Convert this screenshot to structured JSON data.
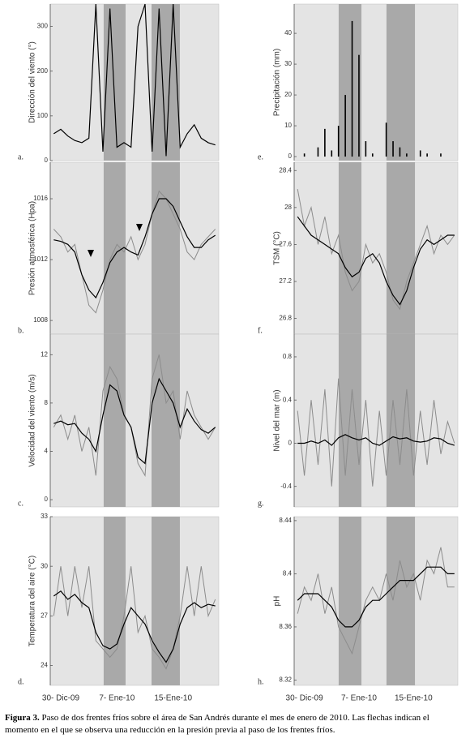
{
  "chart_data": [
    {
      "type": "line",
      "panel_label": "a.",
      "ylabel": "Dirección del viento (°)",
      "ylim": [
        0,
        350
      ],
      "yticks": [
        0,
        100,
        200,
        300
      ],
      "series": [
        {
          "color": "#000",
          "values": [
            60,
            70,
            55,
            45,
            40,
            50,
            350,
            20,
            340,
            30,
            40,
            30,
            300,
            350,
            20,
            340,
            10,
            350,
            30,
            60,
            80,
            50,
            40,
            35
          ]
        }
      ]
    },
    {
      "type": "line",
      "panel_label": "b.",
      "ylabel": "Presión atmosférica (Hpa)",
      "ylim": [
        1007.1,
        1018.4
      ],
      "yticks": [
        1008,
        1012,
        1016
      ],
      "series": [
        {
          "color": "#8c8c8c",
          "values": [
            1014,
            1013.5,
            1012.5,
            1013,
            1011,
            1009,
            1008.5,
            1010,
            1012,
            1013,
            1012.5,
            1013.5,
            1012,
            1013,
            1015,
            1016.5,
            1016,
            1015,
            1014,
            1012.5,
            1012,
            1013,
            1013.5,
            1014
          ]
        },
        {
          "color": "#000",
          "values": [
            1013.3,
            1013.2,
            1013,
            1012.5,
            1011,
            1010,
            1009.5,
            1010.5,
            1011.8,
            1012.5,
            1012.8,
            1012.5,
            1012.3,
            1013.5,
            1015,
            1016,
            1016,
            1015.5,
            1014.5,
            1013.5,
            1012.8,
            1012.8,
            1013.3,
            1013.6
          ]
        }
      ]
    },
    {
      "type": "line",
      "panel_label": "c.",
      "ylabel": "Velocidad del viento (m/s)",
      "ylim": [
        -0.6,
        13.7
      ],
      "yticks": [
        0,
        4,
        8,
        12
      ],
      "series": [
        {
          "color": "#8c8c8c",
          "values": [
            6,
            7,
            5,
            7,
            4,
            6,
            2,
            9,
            11,
            10,
            7,
            6,
            3,
            2,
            10,
            12,
            8,
            9,
            5,
            9,
            7,
            6,
            5,
            6
          ]
        },
        {
          "color": "#000",
          "values": [
            6.3,
            6.5,
            6.2,
            6.3,
            5.5,
            5,
            4,
            7,
            9.5,
            9,
            7,
            6,
            3.5,
            3,
            8,
            10,
            9,
            8,
            6,
            7.5,
            6.5,
            5.8,
            5.5,
            6
          ]
        }
      ]
    },
    {
      "type": "line",
      "panel_label": "d.",
      "ylabel": "Temperatura del aire (°C)",
      "ylim": [
        22.8,
        33
      ],
      "yticks": [
        24,
        27,
        30,
        33
      ],
      "categories": [
        null,
        "30- Dic-09",
        null,
        null,
        null,
        null,
        null,
        null,
        null,
        "7- Ene-10",
        null,
        null,
        null,
        null,
        null,
        null,
        null,
        "15-Ene-10",
        null,
        null,
        null,
        null,
        null,
        null
      ],
      "series": [
        {
          "color": "#8c8c8c",
          "values": [
            27,
            30,
            27,
            30,
            27.5,
            30,
            25.5,
            25,
            24.5,
            25,
            27,
            30,
            26,
            27,
            25,
            24.5,
            23.8,
            25,
            27,
            30,
            27,
            30,
            27,
            28
          ]
        },
        {
          "color": "#000",
          "values": [
            28.2,
            28.5,
            28,
            28.3,
            27.8,
            27.5,
            26,
            25.2,
            25,
            25.3,
            26.5,
            27.5,
            27,
            26.5,
            25.5,
            24.8,
            24.2,
            25,
            26.5,
            27.5,
            27.8,
            27.5,
            27.7,
            27.6
          ]
        }
      ]
    },
    {
      "type": "bar",
      "panel_label": "e.",
      "ylabel": "Precipitación (mm)",
      "ylim": [
        -1.3,
        49.5
      ],
      "yticks": [
        0,
        10,
        20,
        30,
        40
      ],
      "series": [
        {
          "color": "#000",
          "values": [
            0,
            1,
            0,
            3,
            9,
            2,
            10,
            20,
            44,
            33,
            5,
            1,
            0,
            11,
            5,
            3,
            1,
            0,
            2,
            1,
            0,
            1,
            0,
            0
          ]
        }
      ]
    },
    {
      "type": "line",
      "panel_label": "f.",
      "ylabel": "TSM (°C)",
      "ylim": [
        26.63,
        28.49
      ],
      "yticks": [
        26.8,
        27.2,
        27.6,
        28,
        28.4
      ],
      "series": [
        {
          "color": "#8c8c8c",
          "values": [
            28.2,
            27.8,
            28,
            27.6,
            27.9,
            27.5,
            27.7,
            27.3,
            27.1,
            27.2,
            27.6,
            27.4,
            27.5,
            27.3,
            27,
            26.9,
            27.2,
            27.4,
            27.6,
            27.8,
            27.5,
            27.7,
            27.6,
            27.7
          ]
        },
        {
          "color": "#000",
          "values": [
            27.9,
            27.8,
            27.7,
            27.65,
            27.6,
            27.55,
            27.5,
            27.35,
            27.25,
            27.3,
            27.45,
            27.5,
            27.4,
            27.2,
            27.05,
            26.95,
            27.1,
            27.35,
            27.55,
            27.65,
            27.6,
            27.65,
            27.7,
            27.7
          ]
        }
      ]
    },
    {
      "type": "line",
      "panel_label": "g.",
      "ylabel": "Nivel del mar (m)",
      "ylim": [
        -0.59,
        1.01
      ],
      "yticks": [
        -0.4,
        0,
        0.4,
        0.8
      ],
      "series": [
        {
          "color": "#8c8c8c",
          "values": [
            0.3,
            -0.3,
            0.4,
            -0.2,
            0.5,
            -0.4,
            0.6,
            -0.3,
            0.5,
            -0.2,
            0.4,
            -0.4,
            0.3,
            -0.3,
            0.4,
            -0.2,
            0.5,
            -0.3,
            0.3,
            -0.2,
            0.4,
            -0.1,
            0.2,
            0
          ]
        },
        {
          "color": "#000",
          "values": [
            0,
            0,
            0.02,
            0,
            0.03,
            -0.02,
            0.05,
            0.08,
            0.05,
            0.03,
            0.05,
            0,
            -0.02,
            0.02,
            0.06,
            0.04,
            0.05,
            0.02,
            0.01,
            0.02,
            0.05,
            0.04,
            0,
            -0.02
          ]
        }
      ]
    },
    {
      "type": "line",
      "panel_label": "h.",
      "ylabel": "pH",
      "ylim": [
        8.316,
        8.443
      ],
      "yticks": [
        8.32,
        8.36,
        8.4,
        8.44
      ],
      "categories": [
        null,
        "30- Dic-09",
        null,
        null,
        null,
        null,
        null,
        null,
        null,
        "7- Ene-10",
        null,
        null,
        null,
        null,
        null,
        null,
        null,
        "15-Ene-10",
        null,
        null,
        null,
        null,
        null,
        null
      ],
      "series": [
        {
          "color": "#8c8c8c",
          "values": [
            8.37,
            8.39,
            8.38,
            8.4,
            8.37,
            8.39,
            8.36,
            8.35,
            8.34,
            8.36,
            8.38,
            8.39,
            8.38,
            8.4,
            8.38,
            8.41,
            8.39,
            8.4,
            8.38,
            8.41,
            8.4,
            8.42,
            8.39,
            8.39
          ]
        },
        {
          "color": "#000",
          "values": [
            8.38,
            8.385,
            8.385,
            8.385,
            8.38,
            8.375,
            8.365,
            8.36,
            8.36,
            8.365,
            8.375,
            8.38,
            8.38,
            8.385,
            8.39,
            8.395,
            8.395,
            8.395,
            8.4,
            8.405,
            8.405,
            8.405,
            8.4,
            8.4
          ]
        }
      ]
    }
  ],
  "caption": {
    "label": "Figura 3.",
    "text": "Paso de dos frentes fríos sobre el área de San Andrés durante el mes de enero de 2010. Las flechas indican el momento en el que se observa una reducción en la presión previa al paso de los frentes fríos."
  }
}
